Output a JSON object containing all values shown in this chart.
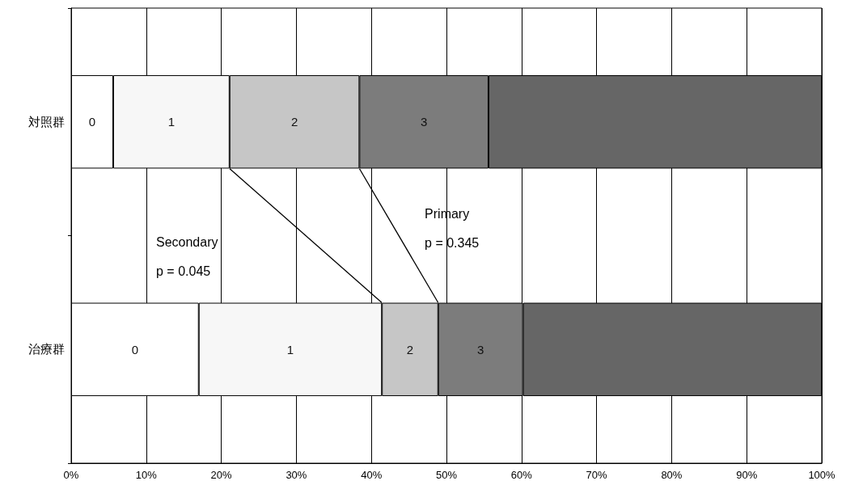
{
  "chart_data": {
    "type": "bar",
    "orientation": "horizontal",
    "stacked": true,
    "categories": [
      "対照群",
      "治療群"
    ],
    "series": [
      {
        "name": "0",
        "color": "#ffffff",
        "values": [
          5.6,
          17.0
        ]
      },
      {
        "name": "1",
        "color": "#f7f7f7",
        "values": [
          15.5,
          24.4
        ]
      },
      {
        "name": "2",
        "color": "#c6c6c6",
        "values": [
          17.3,
          7.5
        ]
      },
      {
        "name": "3",
        "color": "#7c7c7c",
        "values": [
          17.2,
          11.3
        ]
      },
      {
        "color": "#666666",
        "values": [
          44.4,
          39.8
        ]
      }
    ],
    "xlim": [
      0,
      100
    ],
    "xticks": [
      {
        "value": 0,
        "label": "0%"
      },
      {
        "value": 10,
        "label": "10%"
      },
      {
        "value": 20,
        "label": "20%"
      },
      {
        "value": 30,
        "label": "30%"
      },
      {
        "value": 40,
        "label": "40%"
      },
      {
        "value": 50,
        "label": "50%"
      },
      {
        "value": 60,
        "label": "60%"
      },
      {
        "value": 70,
        "label": "70%"
      },
      {
        "value": 80,
        "label": "80%"
      },
      {
        "value": 90,
        "label": "90%"
      },
      {
        "value": 100,
        "label": "100%"
      }
    ],
    "grid": "x",
    "legend": false,
    "annotations": [
      "Secondary\np = 0.045",
      "Primary\np = 0.345"
    ]
  }
}
